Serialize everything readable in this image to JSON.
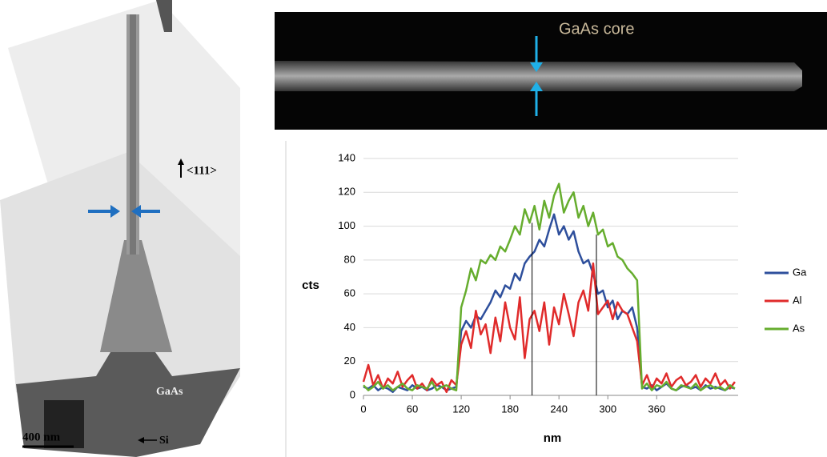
{
  "tem_image": {
    "direction_label": "<111>",
    "material_label": "GaAs",
    "scale_label": "400 nm",
    "substrate_label": "Si"
  },
  "stem_image": {
    "label": "GaAs core"
  },
  "chart_data": {
    "type": "line",
    "x_label": "nm",
    "y_label": "cts",
    "x": [
      0,
      6,
      12,
      18,
      24,
      30,
      36,
      42,
      48,
      54,
      60,
      66,
      72,
      78,
      84,
      90,
      96,
      102,
      108,
      114,
      120,
      126,
      132,
      138,
      144,
      150,
      156,
      162,
      168,
      174,
      180,
      186,
      192,
      198,
      204,
      210,
      216,
      222,
      228,
      234,
      240,
      246,
      252,
      258,
      264,
      270,
      276,
      282,
      288,
      294,
      300,
      306,
      312,
      318,
      324,
      330,
      336,
      342,
      348,
      354,
      360,
      366,
      372,
      378,
      384,
      390,
      396,
      402,
      408,
      414,
      420,
      426,
      432,
      438,
      444,
      450,
      456
    ],
    "series": [
      {
        "name": "Ga",
        "color": "#2e4f9c",
        "values": [
          5,
          4,
          6,
          3,
          5,
          4,
          2,
          5,
          4,
          3,
          6,
          4,
          5,
          3,
          4,
          6,
          5,
          3,
          4,
          5,
          38,
          44,
          40,
          47,
          45,
          50,
          55,
          62,
          58,
          65,
          63,
          72,
          68,
          78,
          82,
          85,
          92,
          88,
          98,
          107,
          95,
          100,
          92,
          97,
          85,
          78,
          80,
          72,
          60,
          62,
          52,
          56,
          45,
          50,
          48,
          52,
          40,
          5,
          4,
          6,
          3,
          5,
          7,
          4,
          3,
          5,
          6,
          4,
          5,
          3,
          6,
          4,
          5,
          4,
          3,
          5,
          4
        ]
      },
      {
        "name": "Al",
        "color": "#e02b2b",
        "values": [
          8,
          18,
          6,
          12,
          4,
          10,
          7,
          14,
          5,
          9,
          12,
          4,
          7,
          3,
          10,
          6,
          8,
          2,
          9,
          6,
          30,
          38,
          28,
          50,
          36,
          42,
          25,
          46,
          32,
          55,
          40,
          33,
          58,
          22,
          45,
          50,
          38,
          55,
          30,
          52,
          42,
          60,
          48,
          35,
          55,
          62,
          50,
          78,
          48,
          52,
          56,
          45,
          55,
          50,
          48,
          40,
          32,
          6,
          12,
          4,
          10,
          7,
          13,
          5,
          9,
          11,
          6,
          8,
          12,
          5,
          10,
          7,
          13,
          6,
          9,
          4,
          8
        ]
      },
      {
        "name": "As",
        "color": "#66ad2e",
        "values": [
          6,
          3,
          5,
          8,
          4,
          6,
          3,
          5,
          7,
          4,
          3,
          6,
          5,
          4,
          8,
          3,
          5,
          6,
          4,
          3,
          52,
          62,
          75,
          68,
          80,
          78,
          83,
          80,
          88,
          85,
          92,
          100,
          95,
          110,
          102,
          112,
          98,
          115,
          105,
          118,
          125,
          108,
          115,
          120,
          105,
          112,
          100,
          108,
          95,
          98,
          88,
          90,
          82,
          80,
          75,
          72,
          68,
          4,
          7,
          3,
          6,
          5,
          8,
          4,
          3,
          6,
          5,
          4,
          7,
          3,
          5,
          6,
          4,
          5,
          3,
          6,
          4
        ]
      }
    ],
    "reference_lines": [
      207,
      286
    ],
    "xlim": [
      0,
      460
    ],
    "xticks": [
      0,
      60,
      120,
      180,
      240,
      300,
      360
    ],
    "ylim": [
      0,
      140
    ],
    "yticks": [
      0,
      20,
      40,
      60,
      80,
      100,
      120,
      140
    ],
    "grid": true,
    "legend": "right"
  }
}
